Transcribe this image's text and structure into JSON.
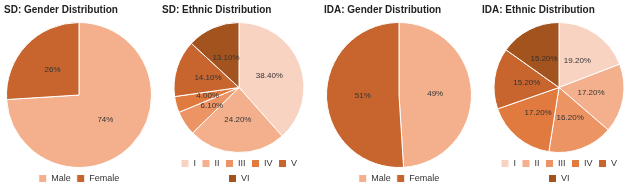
{
  "chart_data": [
    {
      "type": "pie",
      "title": "SD: Gender Distribution",
      "categories": [
        "Male",
        "Female"
      ],
      "values": [
        74,
        26
      ],
      "value_labels": [
        "74%",
        "26%"
      ],
      "colors": [
        "#f4b08c",
        "#c8652f"
      ],
      "data_labels": true,
      "legend": "bottom"
    },
    {
      "type": "pie",
      "title": "SD: Ethnic Distribution",
      "categories": [
        "I",
        "II",
        "III",
        "IV",
        "V",
        "VI"
      ],
      "values": [
        38.4,
        24.2,
        6.1,
        4.0,
        14.1,
        13.1
      ],
      "value_labels": [
        "38.40%",
        "24.20%",
        "6.10%",
        "4.00%",
        "14.10%",
        "13.10%"
      ],
      "colors": [
        "#f9d3c2",
        "#f4b08c",
        "#ec9464",
        "#e07a3e",
        "#c8652f",
        "#a3531e"
      ],
      "data_labels": true,
      "legend": "bottom"
    },
    {
      "type": "pie",
      "title": "IDA: Gender Distribution",
      "categories": [
        "Male",
        "Female"
      ],
      "values": [
        49,
        51
      ],
      "value_labels": [
        "49%",
        "51%"
      ],
      "colors": [
        "#f4b08c",
        "#c8652f"
      ],
      "data_labels": true,
      "legend": "bottom"
    },
    {
      "type": "pie",
      "title": "IDA: Ethnic Distribution",
      "categories": [
        "I",
        "II",
        "III",
        "IV",
        "V",
        "VI"
      ],
      "values": [
        19.2,
        17.2,
        16.2,
        17.2,
        15.2,
        15.2
      ],
      "value_labels": [
        "19.20%",
        "17.20%",
        "16.20%",
        "17.20%",
        "15.20%",
        "15.20%"
      ],
      "colors": [
        "#f9d3c2",
        "#f4b08c",
        "#ec9464",
        "#e07a3e",
        "#c8652f",
        "#a3531e"
      ],
      "data_labels": true,
      "legend": "bottom"
    }
  ]
}
